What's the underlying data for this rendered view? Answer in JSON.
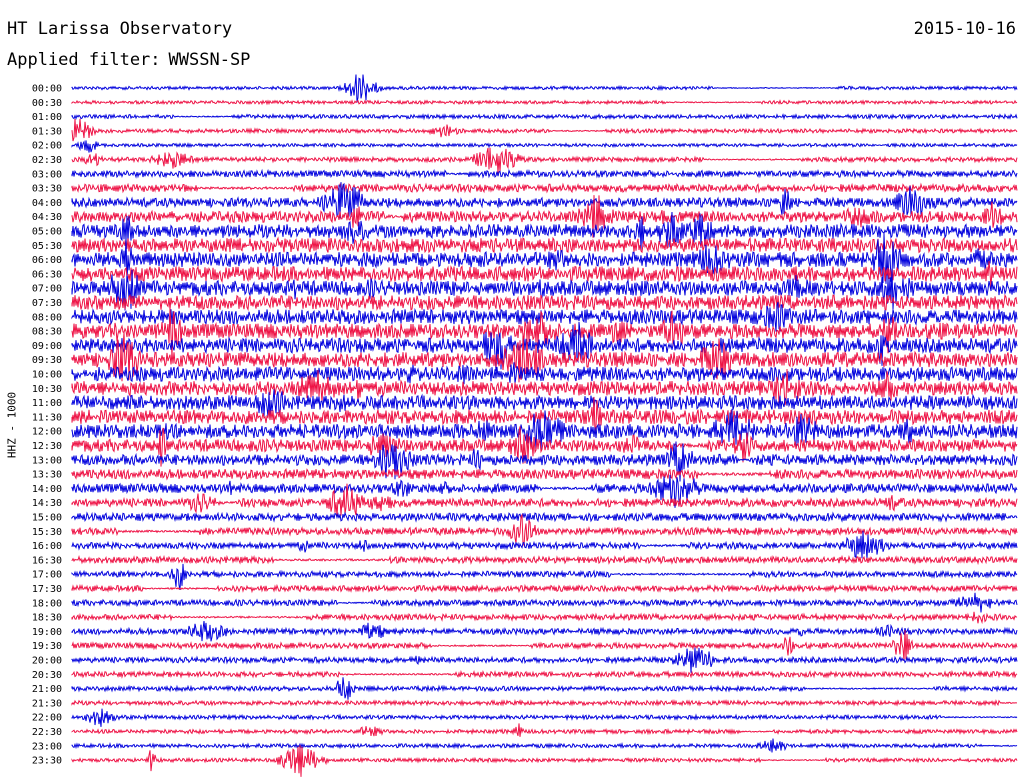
{
  "header": {
    "station": "HT Larissa Observatory",
    "date": "2015-10-16",
    "filter_label": "Applied filter:",
    "filter_value": "WWSSN-SP"
  },
  "chart_data": {
    "type": "line",
    "title": "HT Larissa Observatory",
    "ylabel": "HHZ - 1000",
    "row_labels": [
      "00:00",
      "00:30",
      "01:00",
      "01:30",
      "02:00",
      "02:30",
      "03:00",
      "03:30",
      "04:00",
      "04:30",
      "05:00",
      "05:30",
      "06:00",
      "06:30",
      "07:00",
      "07:30",
      "08:00",
      "08:30",
      "09:00",
      "09:30",
      "10:00",
      "10:30",
      "11:00",
      "11:30",
      "12:00",
      "12:30",
      "13:00",
      "13:30",
      "14:00",
      "14:30",
      "15:00",
      "15:30",
      "16:00",
      "16:30",
      "17:00",
      "17:30",
      "18:00",
      "18:30",
      "19:00",
      "19:30",
      "20:00",
      "20:30",
      "21:00",
      "21:30",
      "22:00",
      "22:30",
      "23:00",
      "23:30"
    ],
    "row_colors": [
      "#0000dd",
      "#ee1144"
    ],
    "noise_level": [
      0.1,
      0.1,
      0.15,
      0.15,
      0.1,
      0.2,
      0.35,
      0.45,
      0.55,
      0.7,
      0.9,
      0.95,
      1.0,
      1.0,
      1.0,
      1.0,
      1.0,
      1.0,
      1.0,
      1.0,
      0.95,
      0.95,
      0.95,
      0.95,
      0.95,
      0.8,
      0.7,
      0.6,
      0.55,
      0.5,
      0.45,
      0.4,
      0.35,
      0.35,
      0.3,
      0.3,
      0.3,
      0.3,
      0.3,
      0.28,
      0.28,
      0.25,
      0.2,
      0.18,
      0.16,
      0.15,
      0.14,
      0.13
    ]
  }
}
